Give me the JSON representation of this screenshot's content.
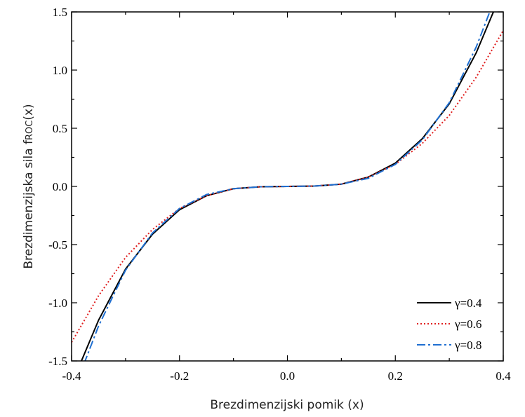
{
  "chart_data": {
    "type": "line",
    "xlabel": "Brezdimenzijski pomik (x)",
    "ylabel": "Brezdimenzijska sila f",
    "ylabel_subscript": "ROC",
    "ylabel_suffix": "(x)",
    "xlim": [
      -0.4,
      0.4
    ],
    "ylim": [
      -1.5,
      1.5
    ],
    "x_ticks": [
      "-0.4",
      "-0.2",
      "0.0",
      "0.2",
      "0.4"
    ],
    "y_ticks": [
      "-1.5",
      "-1.0",
      "-0.5",
      "0.0",
      "0.5",
      "1.0",
      "1.5"
    ],
    "grid": false,
    "legend_position": "bottom-right",
    "series": [
      {
        "name": "γ=0.4",
        "color": "#000000",
        "style": "solid",
        "x": [
          -0.4,
          -0.38,
          -0.35,
          -0.3,
          -0.25,
          -0.2,
          -0.15,
          -0.1,
          -0.05,
          0.0,
          0.05,
          0.1,
          0.15,
          0.2,
          0.25,
          0.3,
          0.35,
          0.38,
          0.4
        ],
        "y": [
          -1.69,
          -1.48,
          -1.15,
          -0.71,
          -0.41,
          -0.2,
          -0.08,
          -0.02,
          -0.003,
          0.0,
          0.003,
          0.02,
          0.08,
          0.2,
          0.41,
          0.71,
          1.15,
          1.48,
          1.69
        ]
      },
      {
        "name": "γ=0.6",
        "color": "#e02020",
        "style": "dotted",
        "x": [
          -0.4,
          -0.38,
          -0.35,
          -0.3,
          -0.25,
          -0.2,
          -0.15,
          -0.1,
          -0.05,
          0.0,
          0.05,
          0.1,
          0.15,
          0.2,
          0.25,
          0.3,
          0.35,
          0.38,
          0.4
        ],
        "y": [
          -1.34,
          -1.18,
          -0.94,
          -0.61,
          -0.37,
          -0.19,
          -0.08,
          -0.02,
          -0.003,
          0.0,
          0.003,
          0.02,
          0.08,
          0.19,
          0.37,
          0.61,
          0.94,
          1.18,
          1.34
        ]
      },
      {
        "name": "γ=0.8",
        "color": "#1f6fd1",
        "style": "dashdot",
        "x": [
          -0.4,
          -0.38,
          -0.35,
          -0.3,
          -0.25,
          -0.2,
          -0.15,
          -0.1,
          -0.05,
          0.0,
          0.05,
          0.1,
          0.15,
          0.2,
          0.25,
          0.3,
          0.35,
          0.38,
          0.4
        ],
        "y": [
          -1.78,
          -1.56,
          -1.2,
          -0.72,
          -0.4,
          -0.19,
          -0.07,
          -0.02,
          -0.003,
          0.0,
          0.003,
          0.02,
          0.07,
          0.19,
          0.4,
          0.72,
          1.2,
          1.56,
          1.78
        ]
      }
    ]
  }
}
